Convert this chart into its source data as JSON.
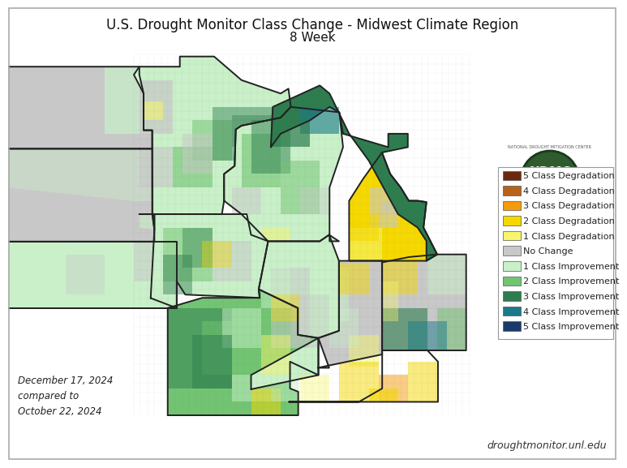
{
  "title_line1": "U.S. Drought Monitor Class Change - Midwest Climate Region",
  "title_line2": "8 Week",
  "date_text": "December 17, 2024\ncompared to\nOctober 22, 2024",
  "website_text": "droughtmonitor.unl.edu",
  "background_color": "#ffffff",
  "title_fontsize": 12,
  "subtitle_fontsize": 11,
  "legend_fontsize": 8,
  "date_fontsize": 8.5,
  "website_fontsize": 9,
  "legend_items": [
    {
      "label": "5 Class Degradation",
      "color": "#6b2a0e"
    },
    {
      "label": "4 Class Degradation",
      "color": "#b8621a"
    },
    {
      "label": "3 Class Degradation",
      "color": "#f59a0a"
    },
    {
      "label": "2 Class Degradation",
      "color": "#f5d800"
    },
    {
      "label": "1 Class Degradation",
      "color": "#f5f56e"
    },
    {
      "label": "No Change",
      "color": "#c8c8c8"
    },
    {
      "label": "1 Class Improvement",
      "color": "#c9f0c9"
    },
    {
      "label": "2 Class Improvement",
      "color": "#72c472"
    },
    {
      "label": "3 Class Improvement",
      "color": "#2e7d4f"
    },
    {
      "label": "4 Class Improvement",
      "color": "#1a7a8a"
    },
    {
      "label": "5 Class Improvement",
      "color": "#1a3a6b"
    }
  ]
}
